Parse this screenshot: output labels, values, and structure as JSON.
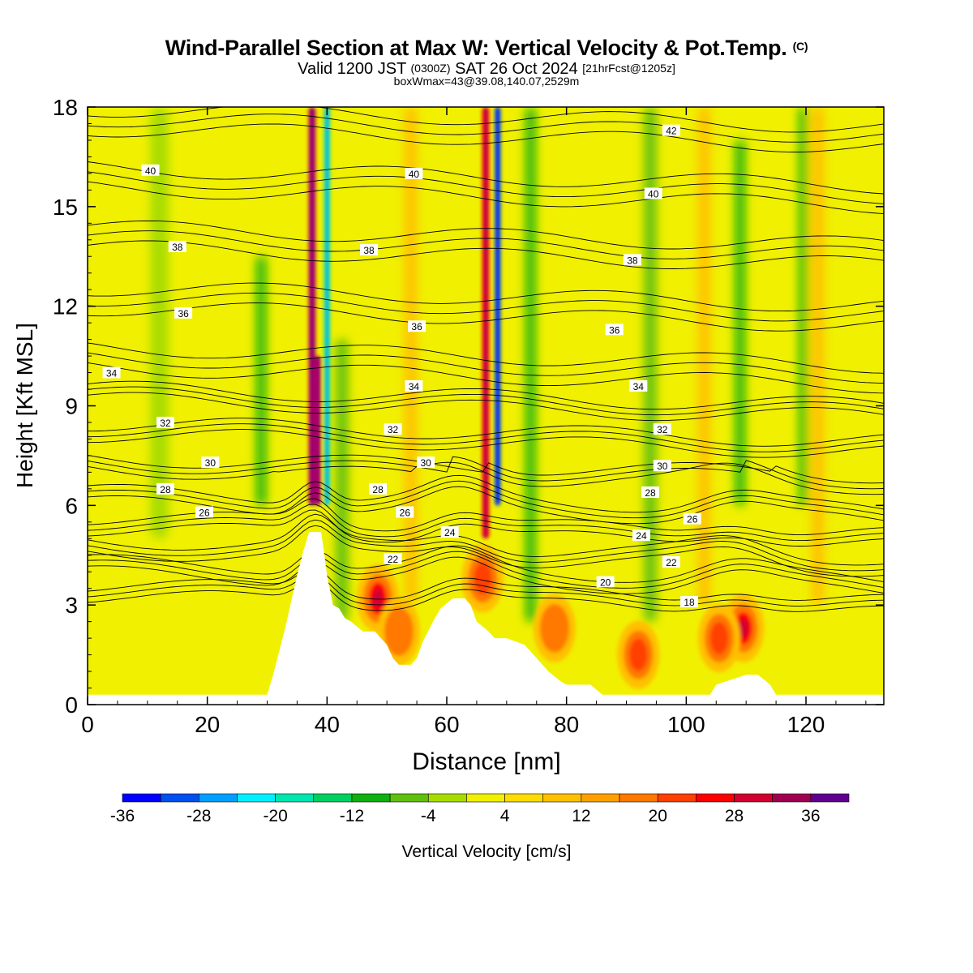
{
  "chart_data": {
    "type": "heatmap",
    "title": "Wind-Parallel Section at Max W: Vertical Velocity & Pot.Temp.",
    "title_unit": "(C)",
    "subtitle": {
      "prefix": "Valid 1200 JST",
      "utc": "(0300Z)",
      "date": "SAT 26 Oct 2024",
      "forecast": "[21hrFcst@1205z]"
    },
    "annotation": "boxWmax=43@39.08,140.07,2529m",
    "xlabel": "Distance [nm]",
    "ylabel": "Height [Kft MSL]",
    "xlim": [
      0,
      133
    ],
    "ylim": [
      0,
      18
    ],
    "x_ticks": [
      "0",
      "20",
      "40",
      "60",
      "80",
      "100",
      "120"
    ],
    "y_ticks": [
      "0",
      "3",
      "6",
      "9",
      "12",
      "15",
      "18"
    ],
    "colorbar": {
      "label": "Vertical Velocity [cm/s]",
      "levels": [
        -36,
        -32,
        -28,
        -24,
        -20,
        -16,
        -12,
        -8,
        -4,
        0,
        4,
        8,
        12,
        16,
        20,
        24,
        28,
        32,
        36,
        40
      ],
      "tick_labels": [
        "-36",
        "-28",
        "-20",
        "-12",
        "-4",
        "4",
        "12",
        "20",
        "28",
        "36"
      ],
      "colors": [
        "#0000ff",
        "#0050f0",
        "#00a0ff",
        "#00f0ff",
        "#00e6b0",
        "#00d060",
        "#10b010",
        "#60c010",
        "#a8dc00",
        "#f0f000",
        "#ffdc00",
        "#ffc000",
        "#ffa000",
        "#ff7800",
        "#ff4000",
        "#ff0000",
        "#d00030",
        "#a00050",
        "#600090"
      ]
    },
    "background_w_cm_s": 2,
    "updraft_columns": [
      {
        "x": 37.5,
        "z_bottom": 6,
        "z_top": 18,
        "w": 30,
        "width_nm": 1.2
      },
      {
        "x": 38.5,
        "z_bottom": 6,
        "z_top": 10.5,
        "w": 30,
        "width_nm": 1.0
      },
      {
        "x": 66.5,
        "z_bottom": 5,
        "z_top": 18,
        "w": 24,
        "width_nm": 1.2
      },
      {
        "x": 54.0,
        "z_bottom": 3,
        "z_top": 18,
        "w": 8,
        "width_nm": 2.0
      },
      {
        "x": 103.0,
        "z_bottom": 3,
        "z_top": 18,
        "w": 8,
        "width_nm": 2.0
      },
      {
        "x": 122.0,
        "z_bottom": 3,
        "z_top": 18,
        "w": 8,
        "width_nm": 2.0
      }
    ],
    "downdraft_columns": [
      {
        "x": 40.0,
        "z_bottom": 6,
        "z_top": 18,
        "w": -20,
        "width_nm": 1.0
      },
      {
        "x": 68.5,
        "z_bottom": 6,
        "z_top": 18,
        "w": -30,
        "width_nm": 1.0
      },
      {
        "x": 29.0,
        "z_bottom": 6,
        "z_top": 13.5,
        "w": -12,
        "width_nm": 1.5
      },
      {
        "x": 42.5,
        "z_bottom": 2.5,
        "z_top": 11,
        "w": -8,
        "width_nm": 2.0
      },
      {
        "x": 74.0,
        "z_bottom": 2.5,
        "z_top": 18,
        "w": -12,
        "width_nm": 1.5
      },
      {
        "x": 94.0,
        "z_bottom": 2.5,
        "z_top": 18,
        "w": -8,
        "width_nm": 2.0
      },
      {
        "x": 109.0,
        "z_bottom": 6,
        "z_top": 17,
        "w": -12,
        "width_nm": 1.5
      },
      {
        "x": 119.5,
        "z_bottom": 6,
        "z_top": 18,
        "w": -12,
        "width_nm": 1.2
      },
      {
        "x": 12.0,
        "z_bottom": 5,
        "z_top": 18,
        "w": -4,
        "width_nm": 3.0
      }
    ],
    "low_level_cells": [
      {
        "x": 48.5,
        "z": 3.2,
        "w": 30
      },
      {
        "x": 52.0,
        "z": 2.2,
        "w": 16
      },
      {
        "x": 66.0,
        "z": 3.8,
        "w": 22
      },
      {
        "x": 78.0,
        "z": 2.3,
        "w": 16
      },
      {
        "x": 92.0,
        "z": 1.5,
        "w": 20
      },
      {
        "x": 109.5,
        "z": 2.3,
        "w": 28
      },
      {
        "x": 105.5,
        "z": 2.0,
        "w": 22
      }
    ],
    "terrain": [
      [
        0,
        0.3
      ],
      [
        30,
        0.3
      ],
      [
        31,
        0.9
      ],
      [
        32,
        1.6
      ],
      [
        33,
        2.3
      ],
      [
        34,
        3.1
      ],
      [
        35,
        3.9
      ],
      [
        36,
        4.6
      ],
      [
        37,
        5.2
      ],
      [
        39,
        5.2
      ],
      [
        39.5,
        4.6
      ],
      [
        40,
        3.9
      ],
      [
        41,
        3.0
      ],
      [
        42,
        2.9
      ],
      [
        43,
        2.6
      ],
      [
        44,
        2.5
      ],
      [
        46,
        2.2
      ],
      [
        48,
        2.2
      ],
      [
        50,
        1.8
      ],
      [
        51,
        1.4
      ],
      [
        52,
        1.2
      ],
      [
        54,
        1.2
      ],
      [
        55,
        1.4
      ],
      [
        56,
        1.9
      ],
      [
        58,
        2.6
      ],
      [
        59,
        2.9
      ],
      [
        61,
        3.2
      ],
      [
        63,
        3.2
      ],
      [
        64,
        3.0
      ],
      [
        65,
        2.5
      ],
      [
        67,
        2.2
      ],
      [
        68,
        2.0
      ],
      [
        70,
        2.0
      ],
      [
        73,
        1.8
      ],
      [
        75,
        1.4
      ],
      [
        77,
        1.0
      ],
      [
        79,
        0.7
      ],
      [
        80,
        0.6
      ],
      [
        84,
        0.6
      ],
      [
        86,
        0.3
      ],
      [
        104,
        0.3
      ],
      [
        105,
        0.6
      ],
      [
        110,
        0.9
      ],
      [
        112,
        0.9
      ],
      [
        114,
        0.6
      ],
      [
        115,
        0.3
      ],
      [
        133,
        0.3
      ]
    ],
    "theta_levels": [
      18,
      20,
      22,
      24,
      26,
      28,
      30,
      32,
      34,
      36,
      38,
      40,
      42
    ],
    "theta_labels": [
      {
        "text": "40",
        "x": 10.5,
        "y": 16.1
      },
      {
        "text": "40",
        "x": 54.5,
        "y": 16.0
      },
      {
        "text": "40",
        "x": 94.5,
        "y": 15.4
      },
      {
        "text": "42",
        "x": 97.5,
        "y": 17.3
      },
      {
        "text": "38",
        "x": 15,
        "y": 13.8
      },
      {
        "text": "38",
        "x": 47,
        "y": 13.7
      },
      {
        "text": "38",
        "x": 91,
        "y": 13.4
      },
      {
        "text": "36",
        "x": 16,
        "y": 11.8
      },
      {
        "text": "36",
        "x": 55,
        "y": 11.4
      },
      {
        "text": "36",
        "x": 88,
        "y": 11.3
      },
      {
        "text": "34",
        "x": 4,
        "y": 10.0
      },
      {
        "text": "34",
        "x": 54.5,
        "y": 9.6
      },
      {
        "text": "34",
        "x": 92,
        "y": 9.6
      },
      {
        "text": "32",
        "x": 13,
        "y": 8.5
      },
      {
        "text": "32",
        "x": 51,
        "y": 8.3
      },
      {
        "text": "32",
        "x": 96,
        "y": 8.3
      },
      {
        "text": "30",
        "x": 20.5,
        "y": 7.3
      },
      {
        "text": "30",
        "x": 56.5,
        "y": 7.3
      },
      {
        "text": "30",
        "x": 96,
        "y": 7.2
      },
      {
        "text": "28",
        "x": 13,
        "y": 6.5
      },
      {
        "text": "28",
        "x": 48.5,
        "y": 6.5
      },
      {
        "text": "28",
        "x": 94,
        "y": 6.4
      },
      {
        "text": "26",
        "x": 19.5,
        "y": 5.8
      },
      {
        "text": "26",
        "x": 53,
        "y": 5.8
      },
      {
        "text": "26",
        "x": 101,
        "y": 5.6
      },
      {
        "text": "24",
        "x": 60.5,
        "y": 5.2
      },
      {
        "text": "24",
        "x": 92.5,
        "y": 5.1
      },
      {
        "text": "22",
        "x": 51,
        "y": 4.4
      },
      {
        "text": "22",
        "x": 97.5,
        "y": 4.3
      },
      {
        "text": "20",
        "x": 86.5,
        "y": 3.7
      },
      {
        "text": "18",
        "x": 100.5,
        "y": 3.1
      }
    ]
  }
}
